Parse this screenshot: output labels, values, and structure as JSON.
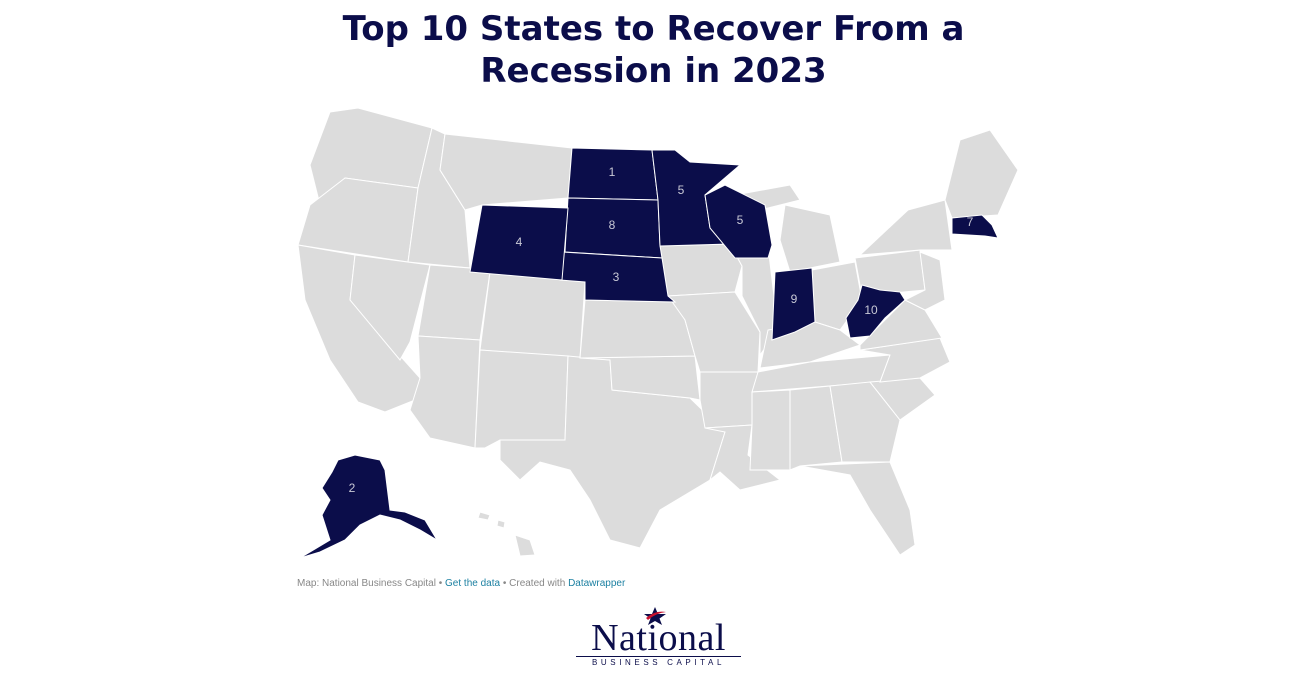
{
  "title_lines": [
    "Top 10 States to Recover From a",
    "Recession in 2023"
  ],
  "colors": {
    "highlight": "#0b0d4a",
    "base": "#dcdcdc",
    "link": "#1d81a2",
    "logo_star_red": "#c8102e"
  },
  "states": [
    {
      "name": "North Dakota",
      "rank": "1"
    },
    {
      "name": "Alaska",
      "rank": "2"
    },
    {
      "name": "Nebraska",
      "rank": "3"
    },
    {
      "name": "Wyoming",
      "rank": "4"
    },
    {
      "name": "Minnesota",
      "rank": "5"
    },
    {
      "name": "Wisconsin",
      "rank": "5"
    },
    {
      "name": "Massachusetts",
      "rank": "7"
    },
    {
      "name": "South Dakota",
      "rank": "8"
    },
    {
      "name": "Indiana",
      "rank": "9"
    },
    {
      "name": "West Virginia",
      "rank": "10"
    }
  ],
  "credits": {
    "prefix": "Map: National Business Capital • ",
    "get_data": "Get the data",
    "middle": " • Created with ",
    "tool": "Datawrapper"
  },
  "logo": {
    "word": "National",
    "sub": "BUSINESS CAPITAL"
  }
}
